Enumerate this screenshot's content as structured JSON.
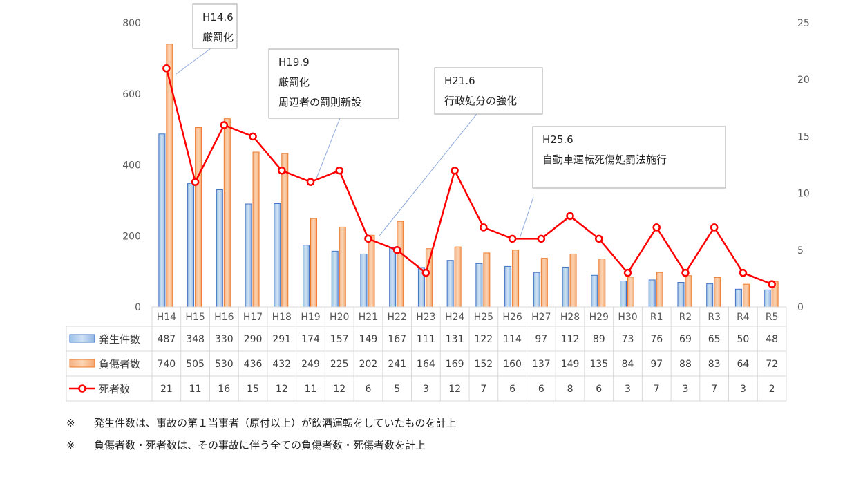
{
  "chart_data": {
    "type": "bar",
    "categories": [
      "H14",
      "H15",
      "H16",
      "H17",
      "H18",
      "H19",
      "H20",
      "H21",
      "H22",
      "H23",
      "H24",
      "H25",
      "H26",
      "H27",
      "H28",
      "H29",
      "H30",
      "R1",
      "R2",
      "R3",
      "R4",
      "R5"
    ],
    "series": [
      {
        "name": "発生件数",
        "kind": "bar",
        "axis": "left",
        "color": "#5b9bd5",
        "values": [
          487,
          348,
          330,
          290,
          291,
          174,
          157,
          149,
          167,
          111,
          131,
          122,
          114,
          97,
          112,
          89,
          73,
          76,
          69,
          65,
          50,
          48
        ]
      },
      {
        "name": "負傷者数",
        "kind": "bar",
        "axis": "left",
        "color": "#f4b183",
        "values": [
          740,
          505,
          530,
          436,
          432,
          249,
          225,
          202,
          241,
          164,
          169,
          152,
          160,
          137,
          149,
          135,
          84,
          97,
          88,
          83,
          64,
          72
        ]
      },
      {
        "name": "死者数",
        "kind": "line",
        "axis": "right",
        "color": "#ff0000",
        "values": [
          21,
          11,
          16,
          15,
          12,
          11,
          12,
          6,
          5,
          3,
          12,
          7,
          6,
          6,
          8,
          6,
          3,
          7,
          3,
          7,
          3,
          2
        ]
      }
    ],
    "y_left": {
      "min": 0,
      "max": 800,
      "ticks": [
        0,
        200,
        400,
        600,
        800
      ]
    },
    "y_right": {
      "min": 0,
      "max": 25,
      "ticks": [
        0,
        5,
        10,
        15,
        20,
        25
      ]
    },
    "grid": false,
    "legend": "data-table",
    "annotations": [
      {
        "lines": [
          "H14.6",
          "厳罰化"
        ],
        "category": "H14"
      },
      {
        "lines": [
          "H19.9",
          "厳罰化",
          "周辺者の罰則新設"
        ],
        "category": "H19"
      },
      {
        "lines": [
          "H21.6",
          "行政処分の強化"
        ],
        "category": "H21"
      },
      {
        "lines": [
          "H25.6",
          "自動車運転死傷処罰法施行"
        ],
        "category": "H26"
      }
    ]
  },
  "notes": [
    {
      "mark": "※",
      "text": "発生件数は、事故の第１当事者（原付以上）が飲酒運転をしていたものを計上"
    },
    {
      "mark": "※",
      "text": "負傷者数・死者数は、その事故に伴う全ての負傷者数・死傷者数を計上"
    }
  ]
}
